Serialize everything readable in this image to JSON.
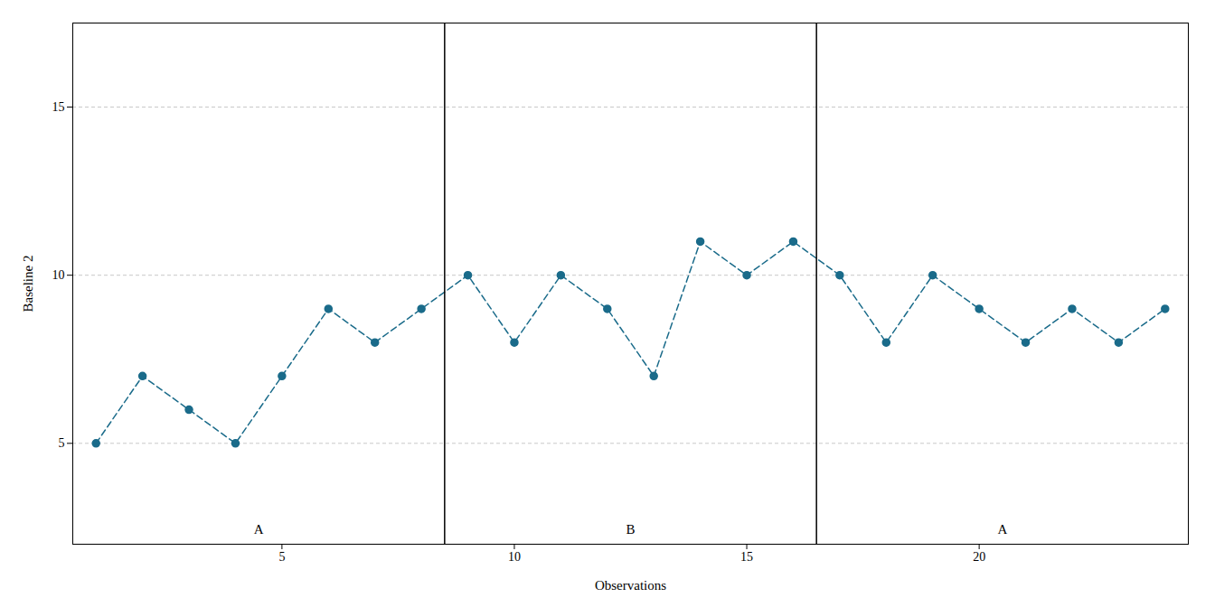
{
  "chart_data": {
    "type": "line",
    "xlabel": "Observations",
    "ylabel": "Baseline 2",
    "x": [
      1,
      2,
      3,
      4,
      5,
      6,
      7,
      8,
      9,
      10,
      11,
      12,
      13,
      14,
      15,
      16,
      17,
      18,
      19,
      20,
      21,
      22,
      23,
      24
    ],
    "values": [
      5,
      7,
      6,
      5,
      7,
      9,
      8,
      9,
      10,
      8,
      10,
      9,
      7,
      11,
      10,
      11,
      10,
      8,
      10,
      9,
      8,
      9,
      8,
      9
    ],
    "color": "#1a6b8a",
    "marker": "circle",
    "line_style": "dashed",
    "phase_boundaries": [
      8.5,
      16.5
    ],
    "annotations": [
      {
        "text": "A",
        "x": 4.5,
        "y": 2.3
      },
      {
        "text": "B",
        "x": 12.5,
        "y": 2.3
      },
      {
        "text": "A",
        "x": 20.5,
        "y": 2.3
      }
    ],
    "xlim": [
      0.5,
      24.5
    ],
    "ylim": [
      2.0,
      17.5
    ],
    "xticks": [
      5,
      10,
      15,
      20
    ],
    "yticks": [
      5,
      10,
      15
    ],
    "grid": true
  }
}
